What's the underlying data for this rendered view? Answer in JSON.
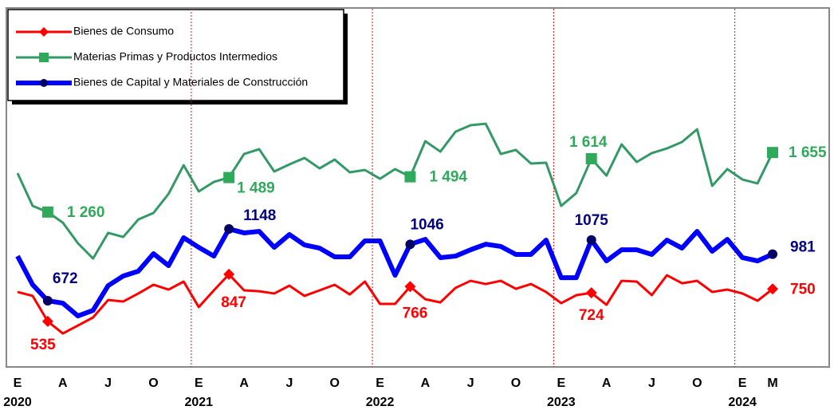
{
  "chart_data": {
    "type": "line",
    "categories": [
      "E",
      null,
      null,
      "A",
      null,
      null,
      "J",
      null,
      null,
      "O",
      null,
      null,
      "E",
      null,
      null,
      "A",
      null,
      null,
      "J",
      null,
      null,
      "O",
      null,
      null,
      "E",
      null,
      null,
      "A",
      null,
      null,
      "J",
      null,
      null,
      "O",
      null,
      null,
      "E",
      null,
      null,
      "A",
      null,
      null,
      "J",
      null,
      null,
      "O",
      null,
      null,
      "E",
      null,
      "M"
    ],
    "years": [
      "2020",
      "2021",
      "2022",
      "2023",
      "2024"
    ],
    "ylim": [
      233,
      2603
    ],
    "legend": "top-left",
    "series": [
      {
        "name": "Bienes de Consumo",
        "color": "#ff0000",
        "marker": "diamond",
        "marker_color": "#ff0000",
        "label_color": "#ff0000",
        "values": [
          730,
          704,
          535,
          455,
          508,
          561,
          677,
          667,
          720,
          778,
          746,
          799,
          630,
          741,
          847,
          741,
          735,
          720,
          772,
          704,
          741,
          778,
          714,
          799,
          651,
          651,
          766,
          682,
          661,
          757,
          804,
          783,
          804,
          751,
          783,
          730,
          656,
          709,
          724,
          645,
          804,
          799,
          709,
          841,
          788,
          804,
          730,
          746,
          720,
          672,
          750
        ],
        "value_labels": [
          null,
          null,
          "535",
          null,
          null,
          null,
          null,
          null,
          null,
          null,
          null,
          null,
          null,
          null,
          "847",
          null,
          null,
          null,
          null,
          null,
          null,
          null,
          null,
          null,
          null,
          null,
          "766",
          null,
          null,
          null,
          null,
          null,
          null,
          null,
          null,
          null,
          null,
          null,
          "724",
          null,
          null,
          null,
          null,
          null,
          null,
          null,
          null,
          null,
          null,
          null,
          "750"
        ]
      },
      {
        "name": "Materias Primas y Productos Intermedios",
        "color": "#339966",
        "marker": "square",
        "marker_color": "#2eaa5a",
        "label_color": "#2eaa5a",
        "values": [
          1518,
          1301,
          1260,
          1190,
          1053,
          952,
          1122,
          1095,
          1211,
          1254,
          1381,
          1571,
          1397,
          1460,
          1489,
          1645,
          1677,
          1529,
          1576,
          1619,
          1550,
          1608,
          1524,
          1539,
          1481,
          1545,
          1494,
          1730,
          1661,
          1793,
          1836,
          1846,
          1645,
          1672,
          1582,
          1587,
          1301,
          1386,
          1614,
          1502,
          1709,
          1592,
          1651,
          1682,
          1725,
          1809,
          1434,
          1545,
          1476,
          1450,
          1655
        ],
        "value_labels": [
          null,
          null,
          "1 260",
          null,
          null,
          null,
          null,
          null,
          null,
          null,
          null,
          null,
          null,
          null,
          "1 489",
          null,
          null,
          null,
          null,
          null,
          null,
          null,
          null,
          null,
          null,
          null,
          "1 494",
          null,
          null,
          null,
          null,
          null,
          null,
          null,
          null,
          null,
          null,
          null,
          "1 614",
          null,
          null,
          null,
          null,
          null,
          null,
          null,
          null,
          null,
          null,
          null,
          "1 655"
        ]
      },
      {
        "name": "Bienes de Capital y Materiales de Construcción",
        "color": "#0000ff",
        "marker": "circle",
        "marker_color": "#000066",
        "label_color": "#000080",
        "values": [
          968,
          778,
          672,
          656,
          571,
          608,
          772,
          836,
          868,
          984,
          905,
          1090,
          1026,
          968,
          1148,
          1122,
          1132,
          1026,
          1111,
          1042,
          1021,
          963,
          963,
          1069,
          1069,
          841,
          1046,
          1079,
          958,
          968,
          1010,
          1047,
          1032,
          979,
          979,
          1074,
          825,
          825,
          1075,
          936,
          1010,
          1010,
          979,
          1074,
          1021,
          1132,
          1000,
          1079,
          958,
          936,
          981
        ],
        "value_labels": [
          null,
          null,
          "672",
          null,
          null,
          null,
          null,
          null,
          null,
          null,
          null,
          null,
          null,
          null,
          "1148",
          null,
          null,
          null,
          null,
          null,
          null,
          null,
          null,
          null,
          null,
          null,
          "1046",
          null,
          null,
          null,
          null,
          null,
          null,
          null,
          null,
          null,
          null,
          null,
          "1075",
          null,
          null,
          null,
          null,
          null,
          null,
          null,
          null,
          null,
          null,
          null,
          "981"
        ]
      }
    ]
  }
}
